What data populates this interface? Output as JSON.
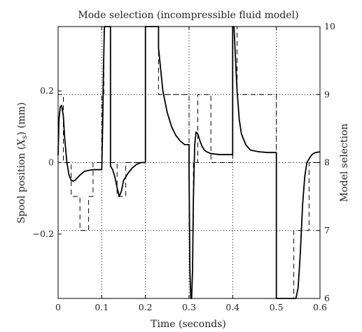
{
  "chart_data": {
    "type": "line",
    "title": "Mode selection (incompressible fluid model)",
    "xlabel": "Time (seconds)",
    "ylabel_left": "Spool position (X_s) (mm)",
    "ylabel_left_parts": {
      "before": "Spool position (",
      "var": "X",
      "sub": "s",
      "after": ") (mm)"
    },
    "ylabel_right": "Model selection",
    "xlim": [
      0,
      0.6
    ],
    "ylim_left": [
      -0.38,
      0.38
    ],
    "ylim_right": [
      6,
      10
    ],
    "x_ticks": [
      {
        "value": 0,
        "label": "0"
      },
      {
        "value": 0.1,
        "label": "0.1"
      },
      {
        "value": 0.2,
        "label": "0.2"
      },
      {
        "value": 0.3,
        "label": "0.3"
      },
      {
        "value": 0.4,
        "label": "0.4"
      },
      {
        "value": 0.5,
        "label": "0.5"
      },
      {
        "value": 0.6,
        "label": "0.6"
      }
    ],
    "y_ticks_left": [
      {
        "value": 0.2,
        "label": "0.2"
      },
      {
        "value": 0,
        "label": "0"
      },
      {
        "value": -0.2,
        "label": "−0.2"
      }
    ],
    "y_ticks_right": [
      {
        "value": 10,
        "label": "10"
      },
      {
        "value": 9,
        "label": "9"
      },
      {
        "value": 8,
        "label": "8"
      },
      {
        "value": 7,
        "label": "7"
      },
      {
        "value": 6,
        "label": "6"
      }
    ],
    "grid": true,
    "series": [
      {
        "axis": "left",
        "style": "solid",
        "x": [
          0,
          0.002,
          0.005,
          0.008,
          0.012,
          0.015,
          0.02,
          0.025,
          0.03,
          0.035,
          0.04,
          0.05,
          0.06,
          0.07,
          0.08,
          0.09,
          0.1,
          0.1,
          0.102,
          0.104,
          0.106,
          0.108,
          0.11,
          0.115,
          0.12,
          0.12,
          0.125,
          0.13,
          0.135,
          0.14,
          0.145,
          0.15,
          0.16,
          0.17,
          0.18,
          0.19,
          0.2,
          0.2,
          0.21,
          0.22,
          0.23,
          0.23,
          0.235,
          0.24,
          0.25,
          0.26,
          0.27,
          0.28,
          0.29,
          0.3,
          0.3,
          0.302,
          0.304,
          0.306,
          0.308,
          0.31,
          0.313,
          0.316,
          0.32,
          0.325,
          0.33,
          0.335,
          0.34,
          0.35,
          0.37,
          0.4,
          0.4,
          0.403,
          0.406,
          0.41,
          0.415,
          0.42,
          0.43,
          0.44,
          0.46,
          0.48,
          0.5,
          0.5,
          0.52,
          0.54,
          0.545,
          0.55,
          0.555,
          0.56,
          0.565,
          0.57,
          0.575,
          0.58,
          0.585,
          0.59,
          0.6
        ],
        "y": [
          0.02,
          0.12,
          0.155,
          0.16,
          0.13,
          0.07,
          0.0,
          -0.035,
          -0.05,
          -0.052,
          -0.048,
          -0.035,
          -0.025,
          -0.022,
          -0.02,
          -0.02,
          -0.02,
          -0.02,
          0.1,
          0.26,
          0.38,
          0.38,
          0.38,
          0.38,
          0.38,
          -0.01,
          -0.02,
          -0.04,
          -0.07,
          -0.095,
          -0.08,
          -0.05,
          -0.03,
          -0.015,
          -0.005,
          0.0,
          0.0,
          0.38,
          0.38,
          0.38,
          0.38,
          0.32,
          0.26,
          0.2,
          0.14,
          0.1,
          0.075,
          0.06,
          0.05,
          0.05,
          -0.02,
          -0.3,
          -0.38,
          -0.38,
          -0.3,
          -0.1,
          0.05,
          0.085,
          0.08,
          0.06,
          0.045,
          0.035,
          0.03,
          0.025,
          0.022,
          0.022,
          0.38,
          0.38,
          0.3,
          0.2,
          0.12,
          0.08,
          0.05,
          0.035,
          0.03,
          0.028,
          0.028,
          -0.38,
          -0.38,
          -0.38,
          -0.38,
          -0.35,
          -0.25,
          -0.12,
          -0.04,
          0.0,
          0.01,
          0.02,
          0.025,
          0.028,
          0.03
        ]
      },
      {
        "axis": "right",
        "style": "dashed",
        "x": [
          0,
          0,
          0.012,
          0.012,
          0.015,
          0.015,
          0.03,
          0.03,
          0.05,
          0.05,
          0.07,
          0.07,
          0.08,
          0.08,
          0.1,
          0.1,
          0.105,
          0.105,
          0.12,
          0.12,
          0.135,
          0.135,
          0.155,
          0.155,
          0.2,
          0.2,
          0.23,
          0.23,
          0.25,
          0.25,
          0.3,
          0.3,
          0.31,
          0.31,
          0.32,
          0.32,
          0.35,
          0.35,
          0.37,
          0.37,
          0.4,
          0.4,
          0.41,
          0.41,
          0.44,
          0.44,
          0.5,
          0.5,
          0.54,
          0.54,
          0.56,
          0.56,
          0.575,
          0.575,
          0.6
        ],
        "y": [
          8,
          9,
          9,
          8,
          8,
          8,
          8,
          7.5,
          7.5,
          7,
          7,
          7.5,
          7.5,
          8,
          8,
          9,
          9,
          10,
          10,
          8,
          8,
          7.5,
          7.5,
          8,
          8,
          10,
          10,
          9,
          9,
          9,
          9,
          7,
          7,
          8,
          8,
          9,
          9,
          8,
          8,
          8,
          8,
          10,
          10,
          9,
          9,
          9,
          9,
          6,
          6,
          7,
          7,
          7,
          7,
          8,
          8
        ]
      }
    ]
  }
}
